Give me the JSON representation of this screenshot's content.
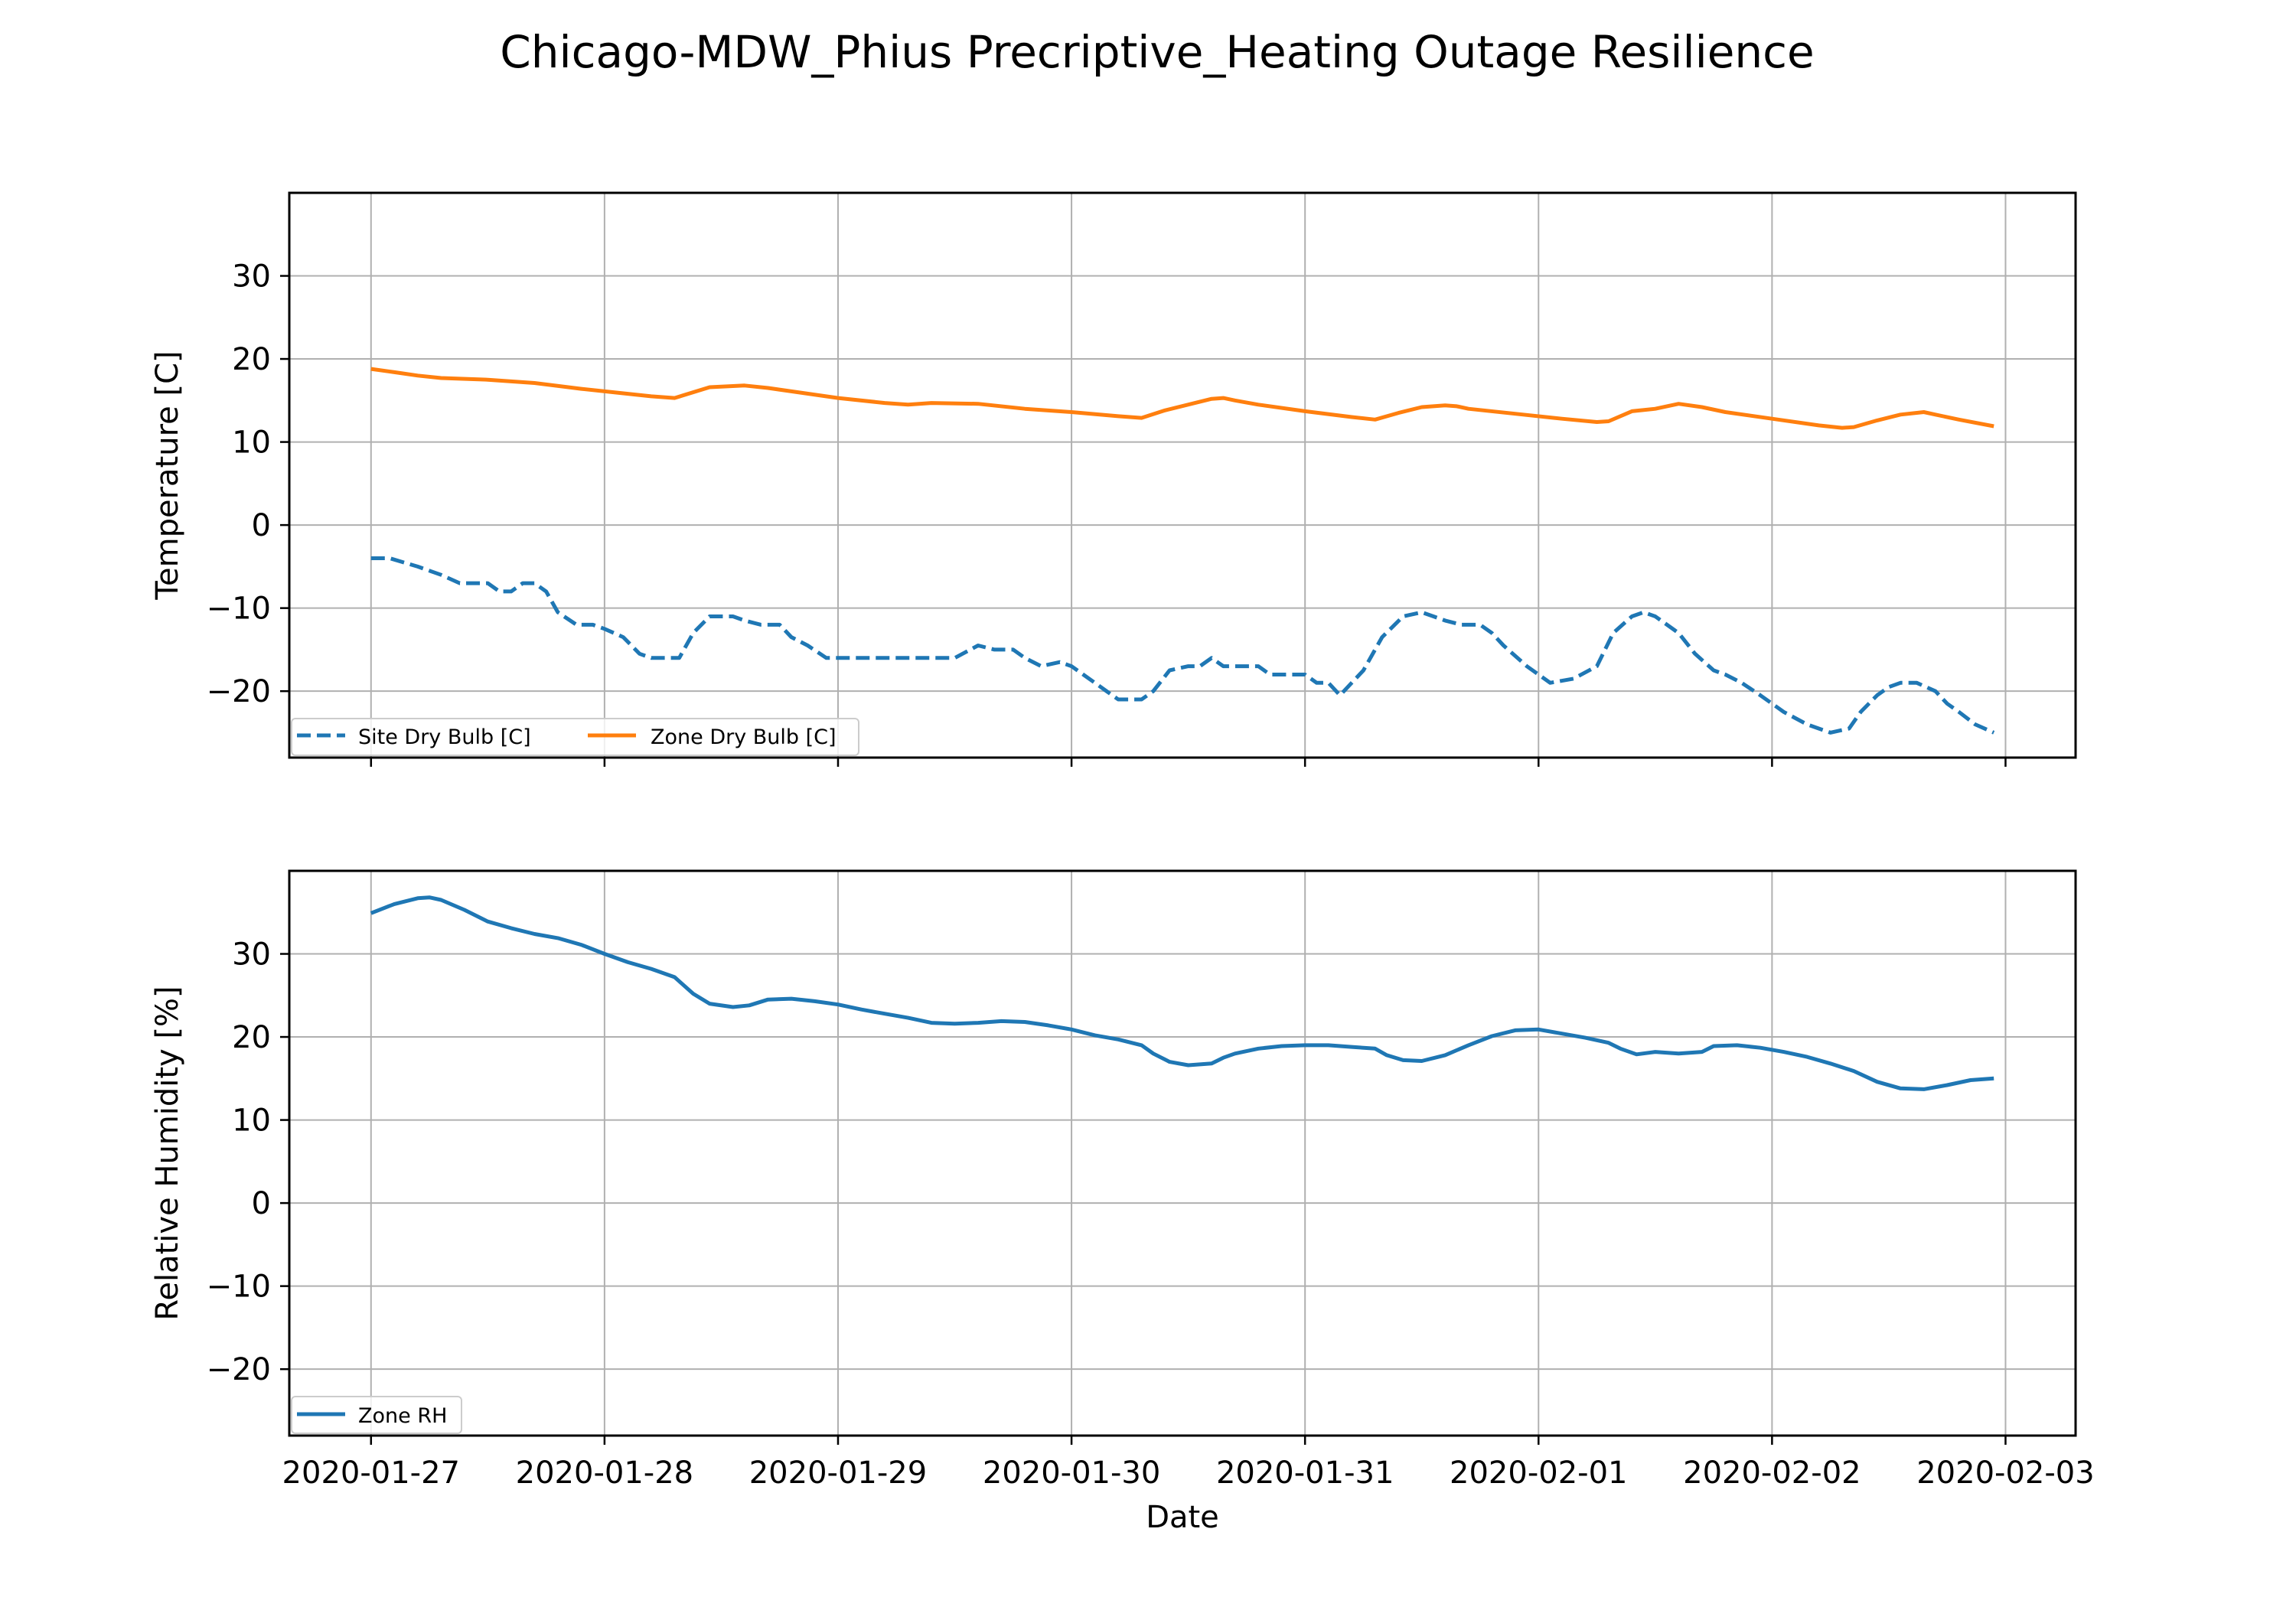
{
  "figure": {
    "title": "Chicago-MDW_Phius Precriptive_Heating Outage Resilience"
  },
  "colors": {
    "site_dry_bulb": "#1f77b4",
    "zone_dry_bulb": "#ff7f0e",
    "zone_rh": "#1f77b4",
    "grid": "#b0b0b0"
  },
  "chart_data": [
    {
      "type": "line",
      "ylabel": "Temperature [C]",
      "ylim": [
        -28,
        40
      ],
      "yticks": [
        -20,
        -10,
        0,
        10,
        20,
        30
      ],
      "ytick_labels": [
        "−20",
        "−10",
        "0",
        "10",
        "20",
        "30"
      ],
      "xlim": [
        -0.35,
        7.3
      ],
      "xticks": [
        0,
        1,
        2,
        3,
        4,
        5,
        6,
        7
      ],
      "grid": true,
      "legend_placement": "lower-left",
      "legend_ncol": 2,
      "x_dates": [
        "2020-01-27 00:00",
        "2020-02-02 23:00"
      ],
      "series": [
        {
          "name": "Site Dry Bulb [C]",
          "style": "dashed",
          "x": [
            0,
            0.08,
            0.2,
            0.3,
            0.38,
            0.45,
            0.5,
            0.55,
            0.6,
            0.65,
            0.7,
            0.75,
            0.8,
            0.88,
            0.95,
            1.0,
            1.08,
            1.15,
            1.2,
            1.25,
            1.32,
            1.38,
            1.45,
            1.5,
            1.55,
            1.6,
            1.67,
            1.75,
            1.8,
            1.87,
            1.95,
            2.0,
            2.1,
            2.2,
            2.3,
            2.35,
            2.4,
            2.5,
            2.6,
            2.67,
            2.75,
            2.8,
            2.87,
            2.95,
            3.0,
            3.1,
            3.15,
            3.2,
            3.3,
            3.35,
            3.42,
            3.5,
            3.55,
            3.6,
            3.65,
            3.7,
            3.8,
            3.85,
            3.9,
            3.95,
            4.0,
            4.05,
            4.1,
            4.15,
            4.25,
            4.33,
            4.42,
            4.5,
            4.55,
            4.6,
            4.67,
            4.75,
            4.8,
            4.85,
            4.95,
            5.05,
            5.15,
            5.25,
            5.32,
            5.4,
            5.45,
            5.5,
            5.6,
            5.67,
            5.75,
            5.8,
            5.87,
            5.95,
            6.05,
            6.15,
            6.25,
            6.33,
            6.38,
            6.45,
            6.5,
            6.55,
            6.62,
            6.7,
            6.75,
            6.8,
            6.87,
            6.95
          ],
          "values": [
            -4,
            -4,
            -5,
            -6,
            -7,
            -7,
            -7,
            -8,
            -8,
            -7,
            -7,
            -8,
            -10.5,
            -12,
            -12,
            -12.5,
            -13.5,
            -15.5,
            -16,
            -16,
            -16,
            -13,
            -11,
            -11,
            -11,
            -11.5,
            -12,
            -12,
            -13.5,
            -14.5,
            -16,
            -16,
            -16,
            -16,
            -16,
            -16,
            -16,
            -16,
            -14.5,
            -15,
            -15,
            -16,
            -17,
            -16.5,
            -17,
            -19,
            -20,
            -21,
            -21,
            -20,
            -17.5,
            -17,
            -17,
            -16,
            -17,
            -17,
            -17,
            -18,
            -18,
            -18,
            -18,
            -19,
            -19,
            -20.5,
            -17.5,
            -13.5,
            -11,
            -10.5,
            -11,
            -11.5,
            -12,
            -12,
            -13,
            -14.5,
            -17,
            -19,
            -18.5,
            -17,
            -13,
            -11,
            -10.5,
            -11,
            -13,
            -15.5,
            -17.5,
            -18,
            -19,
            -20.5,
            -22.5,
            -24,
            -25,
            -24.5,
            -22.5,
            -20.5,
            -19.5,
            -19,
            -19,
            -20,
            -21.5,
            -22.5,
            -24,
            -25
          ]
        },
        {
          "name": "Zone Dry Bulb [C]",
          "style": "solid",
          "x": [
            0,
            0.1,
            0.2,
            0.3,
            0.5,
            0.7,
            0.9,
            1.1,
            1.2,
            1.3,
            1.45,
            1.6,
            1.7,
            1.8,
            2.0,
            2.2,
            2.3,
            2.4,
            2.6,
            2.8,
            3.0,
            3.2,
            3.3,
            3.4,
            3.6,
            3.65,
            3.7,
            3.8,
            4.0,
            4.2,
            4.3,
            4.4,
            4.5,
            4.6,
            4.65,
            4.7,
            4.9,
            5.1,
            5.25,
            5.3,
            5.4,
            5.5,
            5.6,
            5.7,
            5.8,
            6.0,
            6.2,
            6.3,
            6.35,
            6.45,
            6.55,
            6.65,
            6.7,
            6.8,
            6.95
          ],
          "values": [
            18.8,
            18.4,
            18.0,
            17.7,
            17.5,
            17.1,
            16.4,
            15.8,
            15.5,
            15.3,
            16.6,
            16.8,
            16.5,
            16.1,
            15.3,
            14.7,
            14.5,
            14.7,
            14.6,
            14.0,
            13.6,
            13.1,
            12.9,
            13.8,
            15.2,
            15.3,
            15.0,
            14.5,
            13.7,
            13.0,
            12.7,
            13.5,
            14.2,
            14.4,
            14.3,
            14.0,
            13.4,
            12.8,
            12.4,
            12.5,
            13.7,
            14.0,
            14.6,
            14.2,
            13.6,
            12.8,
            12.0,
            11.7,
            11.8,
            12.6,
            13.3,
            13.6,
            13.3,
            12.7,
            11.9
          ]
        }
      ]
    },
    {
      "type": "line",
      "xlabel": "Date",
      "ylabel": "Relative Humidity [%]",
      "ylim": [
        -28,
        40
      ],
      "yticks": [
        -20,
        -10,
        0,
        10,
        20,
        30
      ],
      "ytick_labels": [
        "−20",
        "−10",
        "0",
        "10",
        "20",
        "30"
      ],
      "xlim": [
        -0.35,
        7.3
      ],
      "xticks": [
        0,
        1,
        2,
        3,
        4,
        5,
        6,
        7
      ],
      "xtick_labels": [
        "2020-01-27",
        "2020-01-28",
        "2020-01-29",
        "2020-01-30",
        "2020-01-31",
        "2020-02-01",
        "2020-02-02",
        "2020-02-03"
      ],
      "grid": true,
      "legend_placement": "lower-left",
      "series": [
        {
          "name": "Zone RH",
          "style": "solid",
          "x": [
            0,
            0.1,
            0.2,
            0.25,
            0.3,
            0.4,
            0.5,
            0.6,
            0.7,
            0.8,
            0.9,
            1.0,
            1.1,
            1.2,
            1.3,
            1.38,
            1.45,
            1.55,
            1.62,
            1.7,
            1.8,
            1.9,
            2.0,
            2.1,
            2.2,
            2.3,
            2.4,
            2.5,
            2.6,
            2.7,
            2.8,
            2.9,
            3.0,
            3.1,
            3.2,
            3.3,
            3.35,
            3.42,
            3.5,
            3.6,
            3.65,
            3.7,
            3.8,
            3.9,
            4.0,
            4.1,
            4.2,
            4.3,
            4.35,
            4.42,
            4.5,
            4.6,
            4.7,
            4.8,
            4.9,
            5.0,
            5.1,
            5.2,
            5.3,
            5.35,
            5.42,
            5.5,
            5.6,
            5.7,
            5.75,
            5.85,
            5.95,
            6.05,
            6.15,
            6.25,
            6.35,
            6.45,
            6.55,
            6.65,
            6.75,
            6.85,
            6.95
          ],
          "values": [
            34.9,
            36.0,
            36.7,
            36.8,
            36.5,
            35.3,
            33.9,
            33.1,
            32.4,
            31.9,
            31.1,
            30.0,
            29.0,
            28.2,
            27.2,
            25.2,
            24.0,
            23.6,
            23.8,
            24.5,
            24.6,
            24.3,
            23.9,
            23.3,
            22.8,
            22.3,
            21.7,
            21.6,
            21.7,
            21.9,
            21.8,
            21.4,
            20.9,
            20.2,
            19.7,
            19.0,
            18.0,
            17.0,
            16.6,
            16.8,
            17.5,
            18.0,
            18.6,
            18.9,
            19.0,
            19.0,
            18.8,
            18.6,
            17.8,
            17.2,
            17.1,
            17.8,
            19.0,
            20.1,
            20.8,
            20.9,
            20.4,
            19.9,
            19.3,
            18.6,
            17.9,
            18.2,
            18.0,
            18.2,
            18.9,
            19.0,
            18.7,
            18.2,
            17.6,
            16.8,
            15.9,
            14.6,
            13.8,
            13.7,
            14.2,
            14.8,
            15.0
          ]
        }
      ]
    }
  ]
}
